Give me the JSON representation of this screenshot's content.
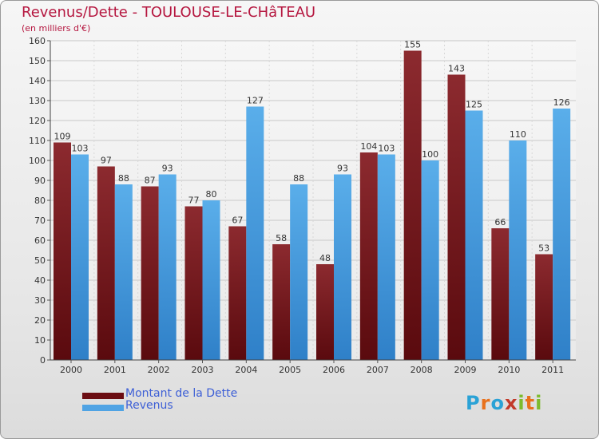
{
  "title": "Revenus/Dette - TOULOUSE-LE-CHâTEAU",
  "subtitle": "(en milliers d'€)",
  "chart_data": {
    "type": "bar",
    "categories": [
      "2000",
      "2001",
      "2002",
      "2003",
      "2004",
      "2005",
      "2006",
      "2007",
      "2008",
      "2009",
      "2010",
      "2011"
    ],
    "series": [
      {
        "name": "Montant de la Dette",
        "color": "#7a1d22",
        "values": [
          109,
          97,
          87,
          77,
          67,
          58,
          48,
          104,
          155,
          143,
          66,
          53
        ]
      },
      {
        "name": "Revenus",
        "color": "#4fa3e4",
        "values": [
          103,
          88,
          93,
          80,
          127,
          88,
          93,
          103,
          100,
          125,
          110,
          126
        ]
      }
    ],
    "ylim": [
      0,
      160
    ],
    "yticks": [
      0,
      10,
      20,
      30,
      40,
      50,
      60,
      70,
      80,
      90,
      100,
      110,
      120,
      130,
      140,
      150,
      160
    ],
    "grid": true,
    "legend_position": "bottom-left"
  },
  "legend": [
    {
      "label": "Montant de la Dette",
      "color": "#6b0d12"
    },
    {
      "label": "Revenus",
      "color": "#4fa3e4"
    }
  ],
  "logo": {
    "letters": [
      "P",
      "r",
      "o",
      "x",
      "i",
      "t",
      "i"
    ],
    "colors": [
      "#2aa2d6",
      "#e8711c",
      "#2aa2d6",
      "#c23a2a",
      "#7dbb2d",
      "#e8711c",
      "#7dbb2d"
    ]
  }
}
